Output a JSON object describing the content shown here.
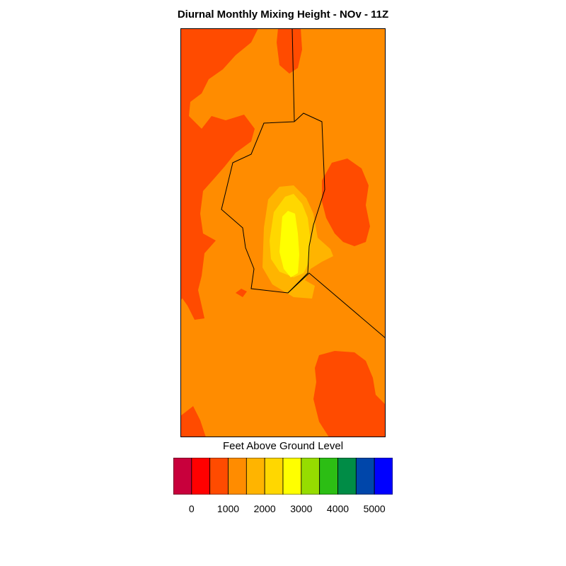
{
  "chart_data": {
    "type": "heatmap",
    "title": "Diurnal Monthly Mixing Height - NOv - 11Z",
    "legend": {
      "title": "Feet Above Ground Level",
      "placement": "bottom",
      "colors": [
        "#c8003c",
        "#ff0000",
        "#ff4b00",
        "#ff8c00",
        "#ffb400",
        "#ffd700",
        "#ffff00",
        "#96dc00",
        "#2cbe14",
        "#008c46",
        "#0046aa",
        "#0000ff"
      ],
      "tick_labels": [
        "0",
        "1000",
        "2000",
        "3000",
        "4000",
        "5000"
      ],
      "tick_values": [
        0,
        1000,
        2000,
        3000,
        4000,
        5000
      ],
      "level_step": 500
    },
    "regions": [
      {
        "name": "background",
        "level_color": "#ff8c00"
      },
      {
        "name": "west",
        "level_color": "#ff4b00"
      },
      {
        "name": "east",
        "level_color": "#ff4b00"
      },
      {
        "name": "southeast",
        "level_color": "#ff4b00"
      },
      {
        "name": "center-outer",
        "level_color": "#ffb400"
      },
      {
        "name": "center-mid",
        "level_color": "#ffd700"
      },
      {
        "name": "center-core",
        "level_color": "#ffff00"
      }
    ],
    "grid": false
  }
}
